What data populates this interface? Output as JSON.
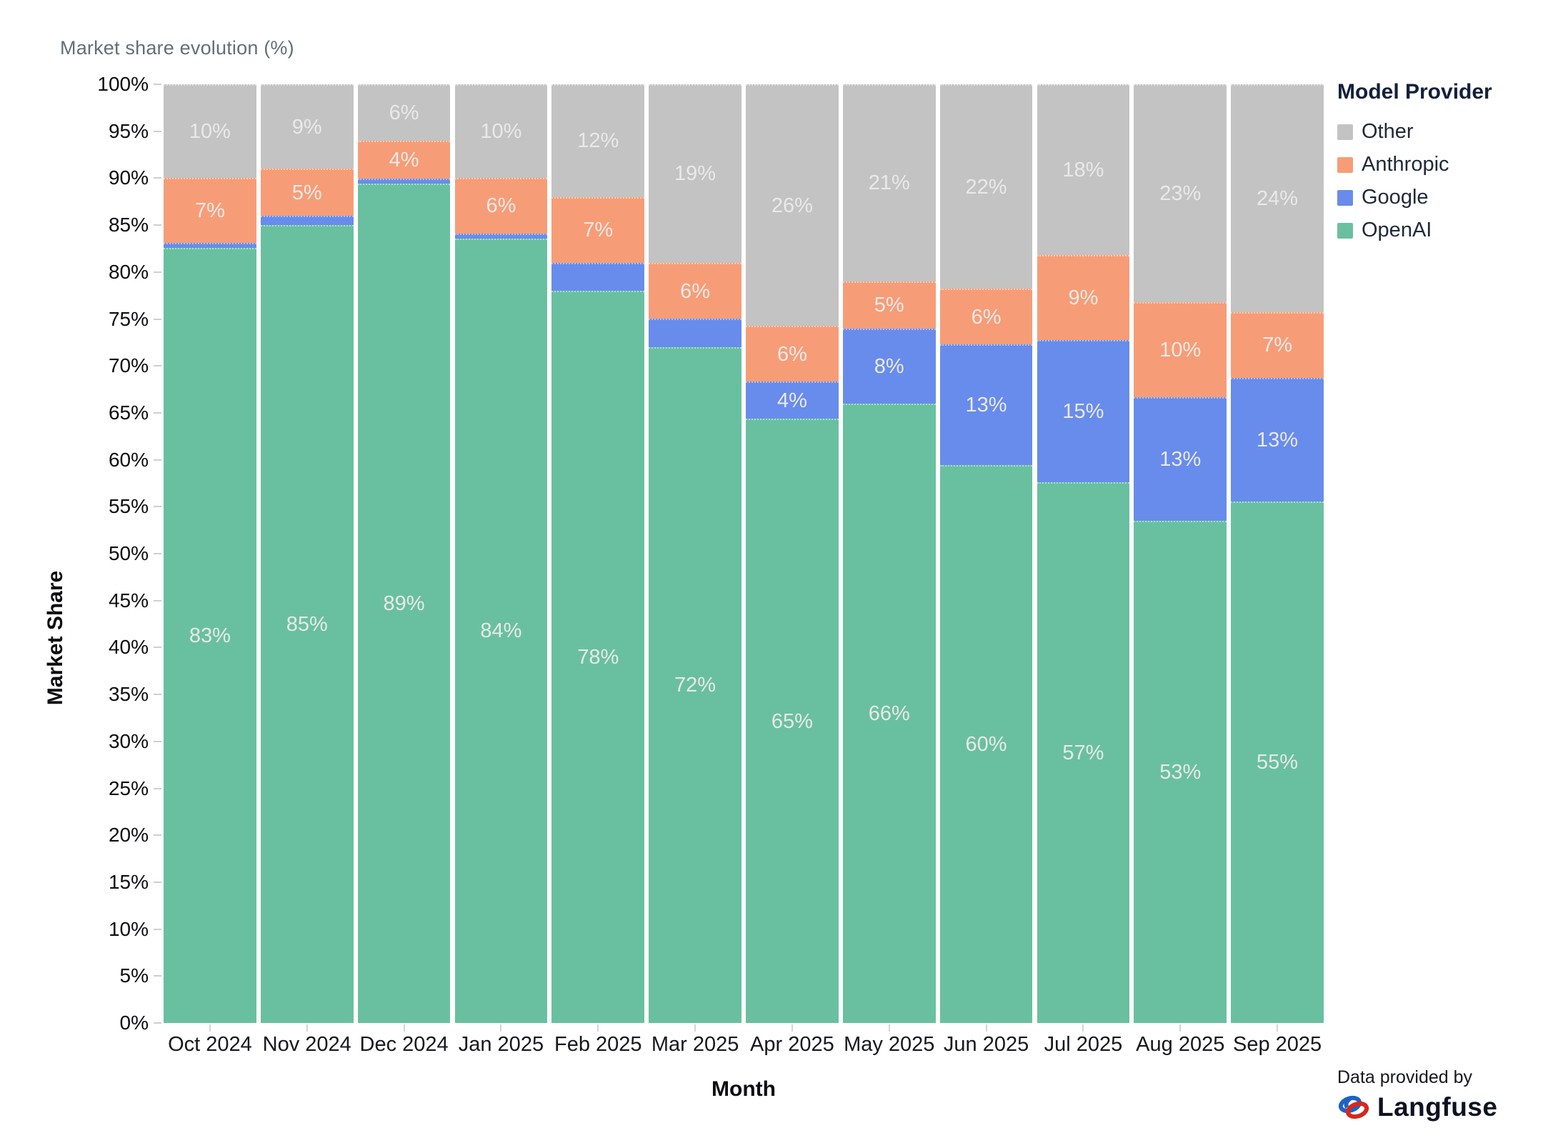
{
  "title": "Market share evolution (%)",
  "legend": {
    "title": "Model Provider",
    "order": [
      "Other",
      "Anthropic",
      "Google",
      "OpenAI"
    ]
  },
  "attribution": {
    "prefix": "Data provided by",
    "brand": "Langfuse"
  },
  "chart_data": {
    "type": "bar",
    "stacked": true,
    "title": "Market share evolution (%)",
    "xlabel": "Month",
    "ylabel": "Market Share",
    "ylim": [
      0,
      100
    ],
    "grid": false,
    "legend_position": "right",
    "categories": [
      "Oct 2024",
      "Nov 2024",
      "Dec 2024",
      "Jan 2025",
      "Feb 2025",
      "Mar 2025",
      "Apr 2025",
      "May 2025",
      "Jun 2025",
      "Jul 2025",
      "Aug 2025",
      "Sep 2025"
    ],
    "y_ticks": [
      "0%",
      "5%",
      "10%",
      "15%",
      "20%",
      "25%",
      "30%",
      "35%",
      "40%",
      "45%",
      "50%",
      "55%",
      "60%",
      "65%",
      "70%",
      "75%",
      "80%",
      "85%",
      "90%",
      "95%",
      "100%"
    ],
    "series": [
      {
        "name": "OpenAI",
        "color": "#69c0a0",
        "values": [
          83,
          85,
          89,
          84,
          78,
          72,
          65,
          66,
          60,
          57,
          53,
          55
        ],
        "labels": [
          "83%",
          "85%",
          "89%",
          "84%",
          "78%",
          "72%",
          "65%",
          "66%",
          "60%",
          "57%",
          "53%",
          "55%"
        ]
      },
      {
        "name": "Google",
        "color": "#688ceb",
        "values": [
          0.5,
          1,
          0.5,
          0.5,
          3,
          3,
          4,
          8,
          13,
          15,
          13,
          13
        ],
        "labels": [
          null,
          null,
          null,
          null,
          null,
          null,
          "4%",
          "8%",
          "13%",
          "15%",
          "13%",
          "13%"
        ]
      },
      {
        "name": "Anthropic",
        "color": "#f69d77",
        "values": [
          7,
          5,
          4,
          6,
          7,
          6,
          6,
          5,
          6,
          9,
          10,
          7
        ],
        "labels": [
          "7%",
          "5%",
          "4%",
          "6%",
          "7%",
          "6%",
          "6%",
          "5%",
          "6%",
          "9%",
          "10%",
          "7%"
        ]
      },
      {
        "name": "Other",
        "color": "#c3c3c3",
        "values": [
          10,
          9,
          6,
          10,
          12,
          19,
          26,
          21,
          22,
          18,
          23,
          24
        ],
        "labels": [
          "10%",
          "9%",
          "6%",
          "10%",
          "12%",
          "19%",
          "26%",
          "21%",
          "22%",
          "18%",
          "23%",
          "24%"
        ]
      }
    ],
    "label_color": "#e9e9e9"
  }
}
